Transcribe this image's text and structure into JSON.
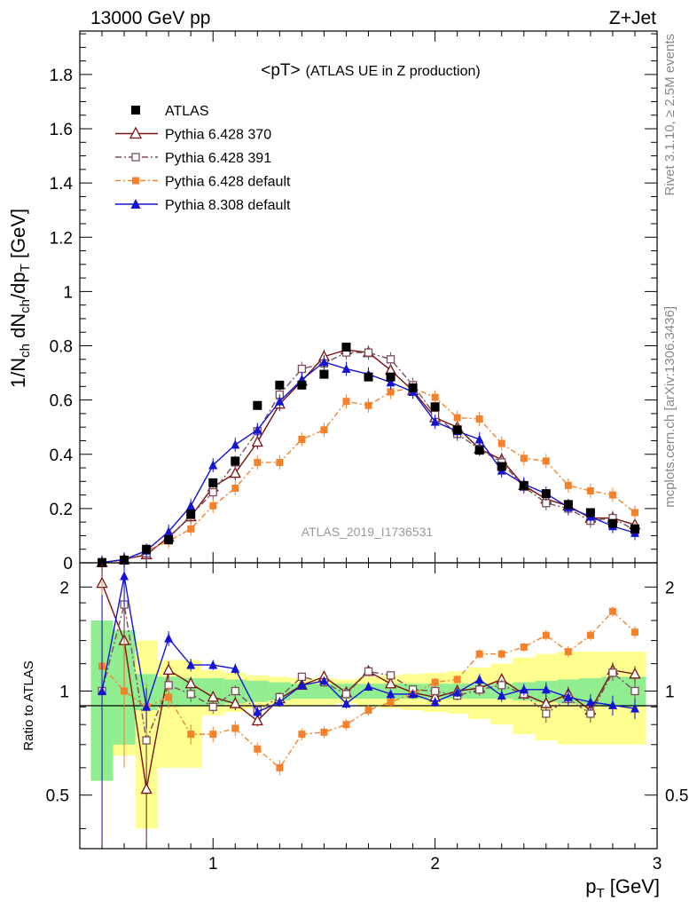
{
  "header": {
    "left": "13000 GeV pp",
    "right": "Z+Jet"
  },
  "side_labels": {
    "rivet": "Rivet 3.1.10, ≥ 2.5M events",
    "mcplots": "mcplots.cern.ch [arXiv:1306.3436]"
  },
  "analysis_label": "ATLAS_2019_I1736531",
  "chart_data": {
    "type": "line",
    "title": "<pT> (ATLAS UE in Z production)",
    "title_main": "<pT>",
    "title_sub": "(ATLAS UE in Z production)",
    "xlabel": "p_T [GeV]",
    "xlabel_main": "p",
    "xlabel_sub": "T",
    "xlabel_unit": " [GeV]",
    "ylabel": "1/N_ch dN_ch/dp_T [GeV]",
    "ylabel_parts": [
      "1/N",
      "ch",
      " dN",
      "ch",
      "/dp",
      "T",
      " [GeV]"
    ],
    "ratio_ylabel": "Ratio to ATLAS",
    "xlim": [
      0.4,
      3.0
    ],
    "ylim": [
      0,
      1.96
    ],
    "ratio_ylim": [
      0.35,
      2.35
    ],
    "xticks": [
      1,
      2,
      3
    ],
    "yticks": [
      0,
      0.2,
      0.4,
      0.6,
      0.8,
      1,
      1.2,
      1.4,
      1.6,
      1.8
    ],
    "ytick_labels": [
      "0",
      "0.2",
      "0.4",
      "0.6",
      "0.8",
      "1",
      "1.2",
      "1.4",
      "1.6",
      "1.8"
    ],
    "ratio_yticks": [
      0.5,
      1,
      2
    ],
    "ratio_ytick_labels": [
      "0.5",
      "1",
      "2"
    ],
    "legend_position": "top-left",
    "x": [
      0.5,
      0.6,
      0.7,
      0.8,
      0.9,
      1.0,
      1.1,
      1.2,
      1.3,
      1.4,
      1.5,
      1.6,
      1.7,
      1.8,
      1.9,
      2.0,
      2.1,
      2.2,
      2.3,
      2.4,
      2.5,
      2.6,
      2.7,
      2.8,
      2.9
    ],
    "data": {
      "name": "ATLAS",
      "values": [
        0.001,
        0.01,
        0.05,
        0.085,
        0.18,
        0.295,
        0.375,
        0.58,
        0.655,
        0.655,
        0.695,
        0.795,
        0.685,
        0.685,
        0.645,
        0.575,
        0.49,
        0.415,
        0.355,
        0.285,
        0.255,
        0.215,
        0.185,
        0.145,
        0.125
      ],
      "band_green": [
        [
          0.45,
          0.6
        ],
        [
          0.3,
          0.5
        ],
        [
          0.12,
          0.12
        ],
        [
          0.1,
          0.1
        ],
        [
          0.09,
          0.09
        ],
        [
          0.09,
          0.09
        ],
        [
          0.08,
          0.08
        ],
        [
          0.07,
          0.07
        ],
        [
          0.06,
          0.06
        ],
        [
          0.05,
          0.05
        ],
        [
          0.05,
          0.05
        ],
        [
          0.05,
          0.05
        ],
        [
          0.05,
          0.05
        ],
        [
          0.05,
          0.05
        ],
        [
          0.05,
          0.05
        ],
        [
          0.05,
          0.05
        ],
        [
          0.05,
          0.05
        ],
        [
          0.05,
          0.05
        ],
        [
          0.05,
          0.05
        ],
        [
          0.06,
          0.06
        ],
        [
          0.07,
          0.07
        ],
        [
          0.08,
          0.08
        ],
        [
          0.09,
          0.09
        ],
        [
          0.1,
          0.1
        ],
        [
          0.1,
          0.1
        ]
      ],
      "band_yellow": [
        [
          0.45,
          0.6
        ],
        [
          0.35,
          0.5
        ],
        [
          0.6,
          0.4
        ],
        [
          0.4,
          0.23
        ],
        [
          0.4,
          0.23
        ],
        [
          0.15,
          0.15
        ],
        [
          0.13,
          0.13
        ],
        [
          0.11,
          0.11
        ],
        [
          0.1,
          0.1
        ],
        [
          0.09,
          0.09
        ],
        [
          0.09,
          0.09
        ],
        [
          0.08,
          0.08
        ],
        [
          0.1,
          0.1
        ],
        [
          0.11,
          0.11
        ],
        [
          0.12,
          0.12
        ],
        [
          0.13,
          0.13
        ],
        [
          0.14,
          0.14
        ],
        [
          0.17,
          0.17
        ],
        [
          0.2,
          0.2
        ],
        [
          0.25,
          0.25
        ],
        [
          0.28,
          0.28
        ],
        [
          0.3,
          0.3
        ],
        [
          0.3,
          0.3
        ],
        [
          0.3,
          0.3
        ],
        [
          0.3,
          0.3
        ]
      ]
    },
    "series": [
      {
        "name": "Pythia 6.428 370",
        "color": "#7a1010",
        "marker": "open-triangle",
        "dash": "",
        "values": [
          0.001,
          0.012,
          0.03,
          0.095,
          0.17,
          0.28,
          0.33,
          0.445,
          0.585,
          0.67,
          0.76,
          0.785,
          0.775,
          0.71,
          0.635,
          0.535,
          0.5,
          0.42,
          0.38,
          0.285,
          0.235,
          0.21,
          0.165,
          0.165,
          0.14
        ],
        "ratio": [
          2.05,
          1.4,
          0.52,
          1.15,
          1.05,
          0.96,
          0.92,
          0.82,
          0.95,
          1.04,
          1.1,
          0.99,
          1.14,
          1.05,
          0.99,
          0.96,
          1.0,
          1.02,
          1.08,
          0.98,
          0.92,
          0.98,
          0.88,
          1.15,
          1.12
        ],
        "ratio_err": [
          0.9,
          0.4,
          0.18,
          0.07,
          0.05,
          0.04,
          0.04,
          0.03,
          0.03,
          0.03,
          0.03,
          0.03,
          0.03,
          0.03,
          0.03,
          0.03,
          0.03,
          0.04,
          0.04,
          0.04,
          0.05,
          0.05,
          0.05,
          0.06,
          0.06
        ]
      },
      {
        "name": "Pythia 6.428 391",
        "color": "#7a4e5a",
        "marker": "open-square",
        "dash": "7 3 2 3",
        "values": [
          0.001,
          0.01,
          0.035,
          0.09,
          0.175,
          0.26,
          0.37,
          0.485,
          0.62,
          0.715,
          0.735,
          0.775,
          0.775,
          0.75,
          0.655,
          0.545,
          0.475,
          0.42,
          0.37,
          0.28,
          0.22,
          0.2,
          0.155,
          0.165,
          0.12
        ],
        "ratio": [
          1.0,
          1.78,
          0.72,
          1.04,
          0.98,
          0.9,
          1.0,
          0.88,
          0.96,
          1.1,
          1.06,
          0.98,
          1.14,
          1.11,
          1.01,
          1.0,
          0.97,
          1.01,
          1.04,
          0.98,
          0.86,
          0.95,
          0.86,
          1.13,
          1.0
        ],
        "ratio_err": [
          0.9,
          0.4,
          0.1,
          0.07,
          0.05,
          0.04,
          0.04,
          0.03,
          0.03,
          0.03,
          0.03,
          0.03,
          0.03,
          0.03,
          0.03,
          0.03,
          0.03,
          0.04,
          0.04,
          0.04,
          0.05,
          0.05,
          0.05,
          0.06,
          0.06
        ]
      },
      {
        "name": "Pythia 6.428 default",
        "color": "#f5822a",
        "marker": "filled-square",
        "dash": "6 3 2 3",
        "values": [
          0.001,
          0.01,
          0.045,
          0.08,
          0.125,
          0.21,
          0.275,
          0.37,
          0.37,
          0.455,
          0.49,
          0.595,
          0.58,
          0.63,
          0.645,
          0.61,
          0.535,
          0.53,
          0.44,
          0.385,
          0.375,
          0.285,
          0.265,
          0.25,
          0.185
        ],
        "ratio": [
          1.18,
          1.0,
          0.9,
          0.96,
          0.75,
          0.75,
          0.78,
          0.68,
          0.6,
          0.75,
          0.76,
          0.8,
          0.88,
          0.93,
          0.98,
          1.06,
          1.08,
          1.28,
          1.28,
          1.34,
          1.45,
          1.3,
          1.45,
          1.7,
          1.48
        ],
        "ratio_err": [
          0.9,
          0.4,
          0.15,
          0.07,
          0.05,
          0.04,
          0.04,
          0.03,
          0.03,
          0.03,
          0.03,
          0.03,
          0.03,
          0.03,
          0.03,
          0.03,
          0.03,
          0.04,
          0.04,
          0.04,
          0.05,
          0.05,
          0.05,
          0.06,
          0.06
        ]
      },
      {
        "name": "Pythia 8.308 default",
        "color": "#1414d4",
        "marker": "filled-triangle",
        "dash": "",
        "values": [
          0.001,
          0.012,
          0.045,
          0.115,
          0.21,
          0.36,
          0.435,
          0.49,
          0.595,
          0.675,
          0.74,
          0.715,
          0.695,
          0.665,
          0.63,
          0.52,
          0.485,
          0.455,
          0.34,
          0.29,
          0.255,
          0.205,
          0.17,
          0.135,
          0.11
        ],
        "ratio": [
          1.0,
          2.15,
          0.9,
          1.42,
          1.19,
          1.19,
          1.16,
          0.87,
          0.93,
          1.04,
          1.07,
          0.92,
          1.03,
          0.98,
          0.98,
          0.93,
          0.99,
          1.08,
          0.97,
          1.01,
          1.01,
          0.96,
          0.93,
          0.91,
          0.89
        ],
        "ratio_err": [
          0.9,
          0.4,
          0.12,
          0.07,
          0.05,
          0.04,
          0.04,
          0.03,
          0.03,
          0.03,
          0.03,
          0.03,
          0.03,
          0.03,
          0.03,
          0.03,
          0.03,
          0.04,
          0.04,
          0.04,
          0.05,
          0.05,
          0.05,
          0.06,
          0.06
        ]
      }
    ]
  }
}
